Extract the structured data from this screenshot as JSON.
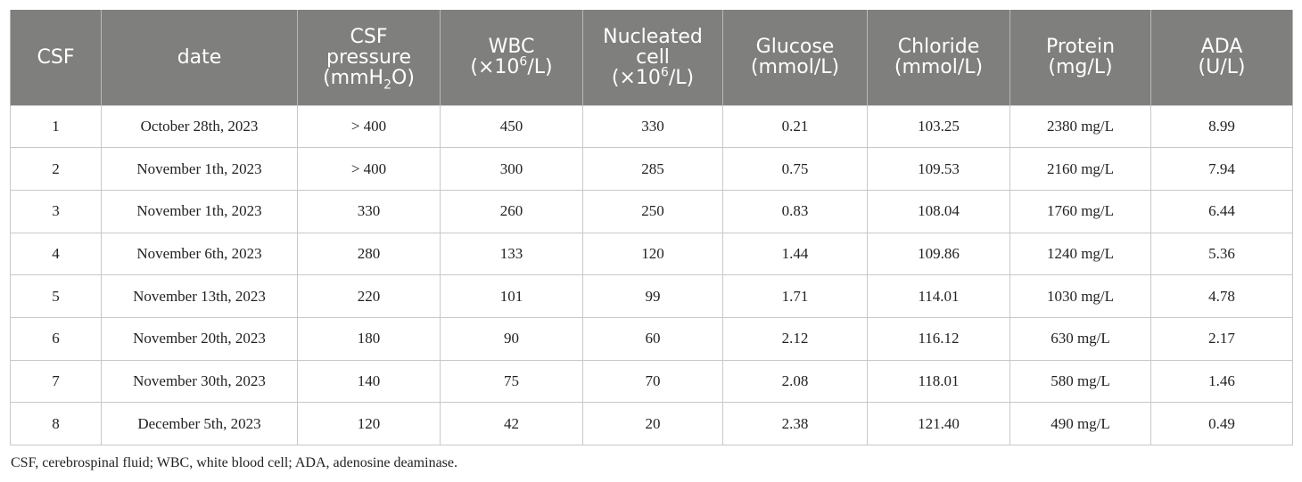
{
  "table": {
    "headers": [
      {
        "lines": [
          {
            "text": "CSF"
          }
        ]
      },
      {
        "lines": [
          {
            "text": "date"
          }
        ]
      },
      {
        "lines": [
          {
            "text": "CSF"
          },
          {
            "text": "pressure"
          },
          {
            "text": "(mmH",
            "sub": "2",
            "after": "O)"
          }
        ]
      },
      {
        "lines": [
          {
            "text": "WBC"
          },
          {
            "text": "(×10",
            "sup": "6",
            "after": "/L)"
          }
        ]
      },
      {
        "lines": [
          {
            "text": "Nucleated"
          },
          {
            "text": "cell"
          },
          {
            "text": "(×10",
            "sup": "6",
            "after": "/L)"
          }
        ]
      },
      {
        "lines": [
          {
            "text": "Glucose"
          },
          {
            "text": "(mmol/L)"
          }
        ]
      },
      {
        "lines": [
          {
            "text": "Chloride"
          },
          {
            "text": "(mmol/L)"
          }
        ]
      },
      {
        "lines": [
          {
            "text": "Protein"
          },
          {
            "text": "(mg/L)"
          }
        ]
      },
      {
        "lines": [
          {
            "text": "ADA"
          },
          {
            "text": "(U/L)"
          }
        ]
      }
    ],
    "rows": [
      [
        "1",
        "October 28th, 2023",
        "> 400",
        "450",
        "330",
        "0.21",
        "103.25",
        "2380 mg/L",
        "8.99"
      ],
      [
        "2",
        "November 1th, 2023",
        "> 400",
        "300",
        "285",
        "0.75",
        "109.53",
        "2160 mg/L",
        "7.94"
      ],
      [
        "3",
        "November 1th, 2023",
        "330",
        "260",
        "250",
        "0.83",
        "108.04",
        "1760 mg/L",
        "6.44"
      ],
      [
        "4",
        "November 6th, 2023",
        "280",
        "133",
        "120",
        "1.44",
        "109.86",
        "1240 mg/L",
        "5.36"
      ],
      [
        "5",
        "November 13th, 2023",
        "220",
        "101",
        "99",
        "1.71",
        "114.01",
        "1030 mg/L",
        "4.78"
      ],
      [
        "6",
        "November 20th, 2023",
        "180",
        "90",
        "60",
        "2.12",
        "116.12",
        "630 mg/L",
        "2.17"
      ],
      [
        "7",
        "November 30th, 2023",
        "140",
        "75",
        "70",
        "2.08",
        "118.01",
        "580 mg/L",
        "1.46"
      ],
      [
        "8",
        "December 5th, 2023",
        "120",
        "42",
        "20",
        "2.38",
        "121.40",
        "490 mg/L",
        "0.49"
      ]
    ]
  },
  "footnote": "CSF, cerebrospinal fluid; WBC, white blood cell; ADA, adenosine deaminase.",
  "colors": {
    "header_bg": "#7f7f7e",
    "header_text": "#ffffff",
    "grid": "#c8c8c8"
  }
}
